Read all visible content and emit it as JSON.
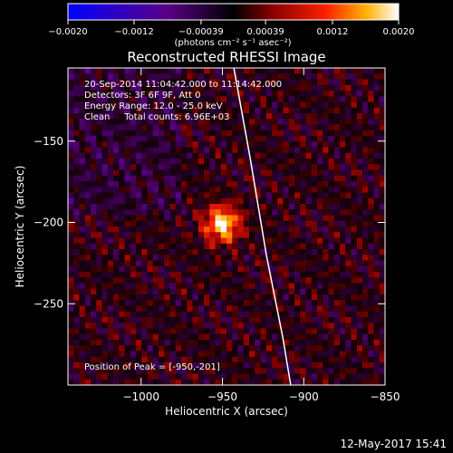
{
  "chart_data": {
    "type": "heatmap",
    "title": "Reconstructed RHESSI Image",
    "xlabel": "Heliocentric X (arcsec)",
    "ylabel": "Heliocentric Y (arcsec)",
    "xlim": [
      -1045,
      -850
    ],
    "ylim": [
      -300,
      -105
    ],
    "xticks": [
      -1000,
      -950,
      -900,
      -850
    ],
    "xtick_labels": [
      "−1000",
      "−950",
      "−900",
      "−850"
    ],
    "yticks": [
      -150,
      -200,
      -250
    ],
    "ytick_labels": [
      "−150",
      "−200",
      "−250"
    ],
    "colorbar": {
      "range": [
        -0.002,
        0.002
      ],
      "ticks": [
        -0.002,
        -0.0012,
        -0.00039,
        0.00039,
        0.0012,
        0.002
      ],
      "tick_labels": [
        "−0.0020",
        "−0.0012",
        "−0.00039",
        "0.00039",
        "0.0012",
        "0.0020"
      ],
      "units": "(photons cm⁻² s⁻¹ asec⁻²)",
      "colors": [
        "#0000ff",
        "#5a0086",
        "#000000",
        "#8a0000",
        "#ff2000",
        "#ffb000",
        "#ffffff"
      ]
    },
    "annotations": [
      "20-Sep-2014 11:04:42.000 to 11:14:42.000",
      "Detectors: 3F 6F 9F, Att 0",
      "Energy Range: 12.0 - 25.0 keV",
      "Clean     Total counts: 6.96E+03"
    ],
    "peak_label": "Position of Peak = [-950,-201]",
    "peak": {
      "x": -950,
      "y": -201,
      "value": 0.002
    },
    "limb_curve": [
      [
        -943,
        -105
      ],
      [
        -933,
        -160
      ],
      [
        -923,
        -220
      ],
      [
        -913,
        -270
      ],
      [
        -908,
        -300
      ]
    ]
  },
  "footer": {
    "timestamp": "12-May-2017 15:41"
  }
}
